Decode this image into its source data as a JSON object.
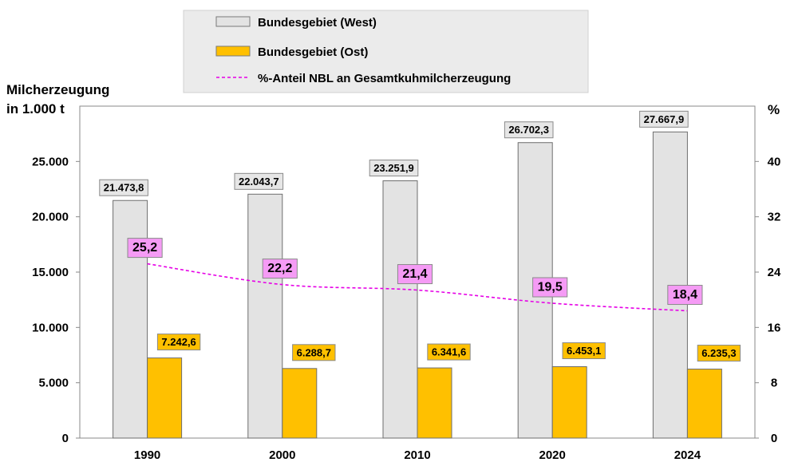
{
  "chart_data": {
    "type": "bar",
    "categories": [
      "1990",
      "2000",
      "2010",
      "2020",
      "2024"
    ],
    "series": [
      {
        "name": "Bundesgebiet (West)",
        "values": [
          21473.8,
          22043.7,
          23251.9,
          26702.3,
          27667.9
        ],
        "labels": [
          "21.473,8",
          "22.043,7",
          "23.251,9",
          "26.702,3",
          "27.667,9"
        ],
        "color": "#e3e3e3"
      },
      {
        "name": "Bundesgebiet (Ost)",
        "values": [
          7242.6,
          6288.7,
          6341.6,
          6453.1,
          6235.3
        ],
        "labels": [
          "7.242,6",
          "6.288,7",
          "6.341,6",
          "6.453,1",
          "6.235,3"
        ],
        "color": "#ffc000"
      },
      {
        "name": "%-Anteil NBL an Gesamtkuhmilcherzeugung",
        "type": "line",
        "axis": "right",
        "values": [
          25.2,
          22.2,
          21.4,
          19.5,
          18.4
        ],
        "labels": [
          "25,2",
          "22,2",
          "21,4",
          "19,5",
          "18,4"
        ],
        "color": "#e600e6"
      }
    ],
    "ylabel": [
      "Milcherzeugung",
      "in 1.000 t"
    ],
    "y2label": "%",
    "ylim": [
      0,
      30000
    ],
    "y2lim": [
      0,
      48
    ],
    "yticks": [
      0,
      5000,
      10000,
      15000,
      20000,
      25000
    ],
    "ytick_labels": [
      "0",
      "5.000",
      "10.000",
      "15.000",
      "20.000",
      "25.000"
    ],
    "y2ticks": [
      0,
      8,
      16,
      24,
      32,
      40
    ],
    "y2tick_labels": [
      "0",
      "8",
      "16",
      "24",
      "32",
      "40"
    ],
    "legend_placement": "top",
    "grid": false
  }
}
